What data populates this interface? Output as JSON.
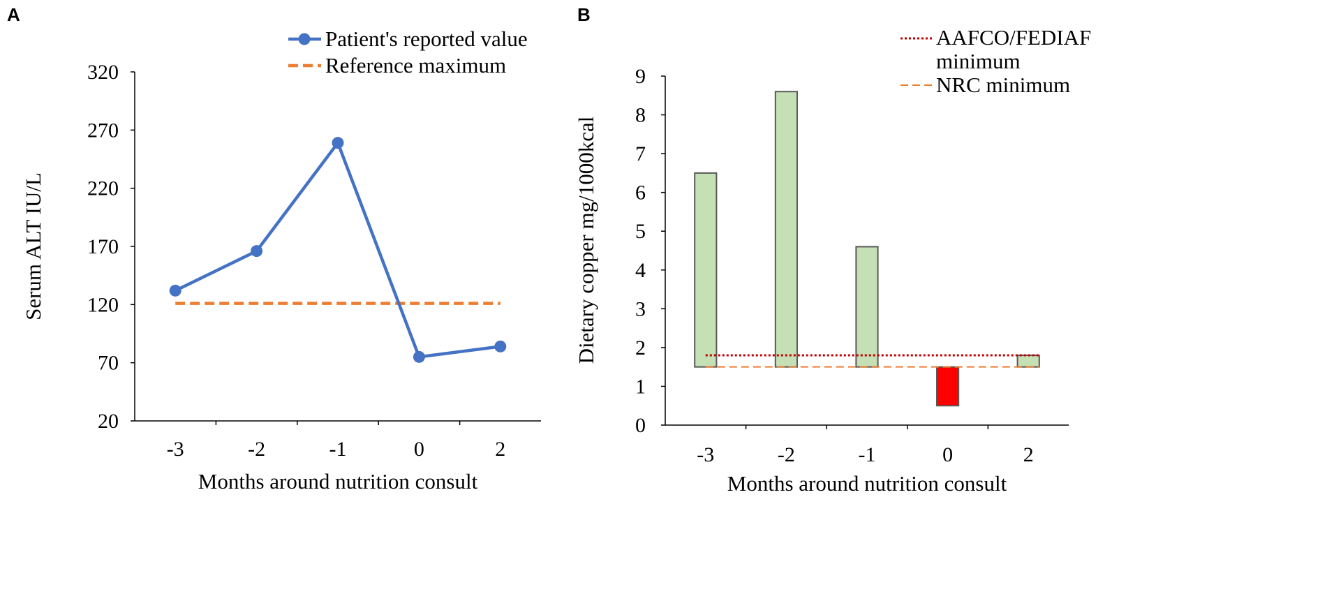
{
  "colors": {
    "line_series": "#4472c4",
    "reference_line": "#ed7d31",
    "bar_fill": "#c5e0b4",
    "bar_fill_negative": "#ff0000",
    "bar_stroke": "#595959",
    "aafco_line": "#c00000",
    "axis": "#000000"
  },
  "chart_data": [
    {
      "panel": "A",
      "type": "line",
      "categories": [
        "-3",
        "-2",
        "-1",
        "0",
        "2"
      ],
      "series": [
        {
          "name": "Patient's reported value",
          "values": [
            132,
            166,
            259,
            75,
            84
          ],
          "style": "solid-markers"
        },
        {
          "name": "Reference maximum",
          "values": [
            121,
            121,
            121,
            121,
            121
          ],
          "style": "dashed"
        }
      ],
      "ylabel": "Serum ALT IU/L",
      "xlabel": "Months around nutrition consult",
      "ylim": [
        20,
        320
      ],
      "yticks": [
        20,
        70,
        120,
        170,
        220,
        270,
        320
      ],
      "grid": false,
      "legend": "top-right"
    },
    {
      "panel": "B",
      "type": "bar",
      "categories": [
        "-3",
        "-2",
        "-1",
        "0",
        "2"
      ],
      "bars": [
        {
          "base": 1.5,
          "value": 6.5
        },
        {
          "base": 1.5,
          "value": 8.6
        },
        {
          "base": 1.5,
          "value": 4.6
        },
        {
          "base": 1.5,
          "value": 0.5
        },
        {
          "base": 1.5,
          "value": 1.8
        }
      ],
      "reference_lines": [
        {
          "name": "AAFCO/FEDIAF minimum",
          "value": 1.8,
          "style": "dotted"
        },
        {
          "name": "NRC minimum",
          "value": 1.5,
          "style": "dashed"
        }
      ],
      "legend_entries": [
        {
          "lines": [
            "AAFCO/FEDIAF",
            "minimum"
          ],
          "style": "dotted"
        },
        {
          "lines": [
            "NRC minimum"
          ],
          "style": "dashed"
        }
      ],
      "ylabel": "Dietary copper mg/1000kcal",
      "xlabel": "Months around nutrition consult",
      "ylim": [
        0,
        9
      ],
      "yticks": [
        0,
        1,
        2,
        3,
        4,
        5,
        6,
        7,
        8,
        9
      ],
      "grid": false,
      "legend": "top-right"
    }
  ]
}
